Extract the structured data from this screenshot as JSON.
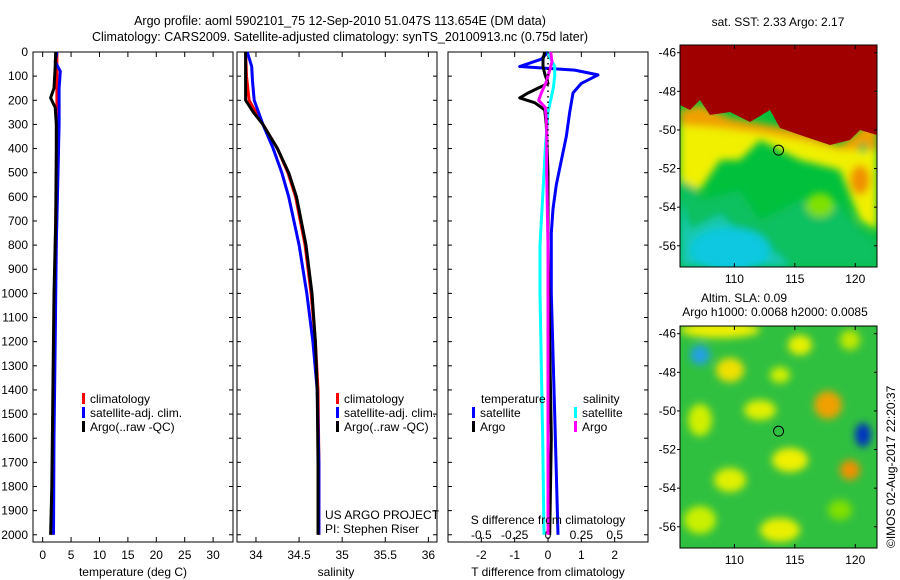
{
  "title": {
    "line1": "Argo profile: aoml 5902101_75 12-Sep-2010 51.047S 113.654E (DM data)",
    "line2": "Climatology: CARS2009. Satellite-adjusted climatology: synTS_20100913.nc (0.75d later)"
  },
  "colors": {
    "climatology": "#ff0000",
    "satellite": "#0000ff",
    "argo": "#000000",
    "sal_satellite": "#00ffff",
    "sal_argo": "#ff00ff"
  },
  "chart_data": [
    {
      "type": "line",
      "name": "temperature",
      "xlabel": "temperature (deg C)",
      "ylabel": "",
      "xlim": [
        -1.7,
        33.5
      ],
      "ylim": [
        2030,
        0
      ],
      "xticks": [
        "0",
        "5",
        "10",
        "15",
        "20",
        "25",
        "30"
      ],
      "xtick_values": [
        0,
        5,
        10,
        15,
        20,
        25,
        30
      ],
      "yticks": [
        "0",
        "100",
        "200",
        "300",
        "400",
        "500",
        "600",
        "700",
        "800",
        "900",
        "1000",
        "1100",
        "1200",
        "1300",
        "1400",
        "1500",
        "1600",
        "1700",
        "1800",
        "1900",
        "2000"
      ],
      "legend": [
        "climatology",
        "satellite-adj. clim.",
        "Argo(..raw -QC)"
      ],
      "series": [
        {
          "name": "climatology",
          "color": "#ff0000",
          "depth": [
            0,
            100,
            200,
            400,
            700,
            1000,
            1500,
            2000
          ],
          "values": [
            2.5,
            2.5,
            2.5,
            2.5,
            2.3,
            2.1,
            1.9,
            1.8
          ]
        },
        {
          "name": "satellite-adj. clim.",
          "color": "#0000ff",
          "depth": [
            0,
            40,
            80,
            150,
            300,
            500,
            800,
            1200,
            1600,
            2000
          ],
          "values": [
            2.5,
            2.2,
            3.1,
            2.9,
            2.9,
            2.7,
            2.4,
            2.2,
            2.0,
            1.9
          ]
        },
        {
          "name": "Argo",
          "color": "#000000",
          "depth": [
            0,
            60,
            150,
            190,
            230,
            300,
            400,
            700,
            1000,
            1400,
            1800,
            2000
          ],
          "values": [
            2.3,
            2.2,
            2.0,
            1.4,
            2.2,
            2.4,
            2.4,
            2.3,
            2.0,
            1.8,
            1.6,
            1.4
          ]
        }
      ]
    },
    {
      "type": "line",
      "name": "salinity",
      "xlabel": "salinity",
      "xlim": [
        33.78,
        36.1
      ],
      "ylim": [
        2030,
        0
      ],
      "xticks": [
        "34",
        "34.5",
        "35",
        "35.5",
        "36"
      ],
      "xtick_values": [
        34,
        34.5,
        35,
        35.5,
        36
      ],
      "legend": [
        "climatology",
        "satellite-adj. clim.",
        "Argo(..raw -QC)"
      ],
      "annotation": [
        "US ARGO PROJECT",
        "PI: Stephen Riser"
      ],
      "series": [
        {
          "name": "climatology",
          "color": "#ff0000",
          "depth": [
            0,
            100,
            200,
            300,
            400,
            500,
            600,
            800,
            1000,
            1200,
            1400,
            1700,
            2000
          ],
          "values": [
            33.88,
            33.89,
            33.92,
            34.08,
            34.25,
            34.37,
            34.46,
            34.57,
            34.64,
            34.69,
            34.72,
            34.73,
            34.73
          ]
        },
        {
          "name": "satellite-adj. clim.",
          "color": "#0000ff",
          "depth": [
            0,
            60,
            120,
            200,
            300,
            400,
            500,
            600,
            800,
            1000,
            1200,
            1400,
            1700,
            2000
          ],
          "values": [
            33.9,
            33.95,
            33.96,
            33.98,
            34.08,
            34.2,
            34.3,
            34.38,
            34.5,
            34.59,
            34.66,
            34.71,
            34.73,
            34.73
          ]
        },
        {
          "name": "Argo",
          "color": "#000000",
          "depth": [
            0,
            100,
            200,
            250,
            300,
            400,
            500,
            600,
            800,
            1000,
            1200,
            1400,
            1700,
            2000
          ],
          "values": [
            33.88,
            33.88,
            33.88,
            33.97,
            34.08,
            34.25,
            34.38,
            34.47,
            34.58,
            34.65,
            34.69,
            34.71,
            34.72,
            34.72
          ]
        }
      ]
    },
    {
      "type": "line",
      "name": "difference",
      "xlabel": "T difference from climatology",
      "x2label": "S difference from climatology",
      "xlim": [
        -3,
        3
      ],
      "ylim": [
        2030,
        0
      ],
      "xticks": [
        "-2",
        "-1",
        "0",
        "1",
        "2"
      ],
      "xtick_values": [
        -2,
        -1,
        0,
        1,
        2
      ],
      "x2ticks": [
        "-0.5",
        "-0.25",
        "0",
        "0.25",
        "0.5"
      ],
      "x2tick_values": [
        -0.5,
        -0.25,
        0,
        0.25,
        0.5
      ],
      "legend": {
        "temperature": "temperature",
        "salinity": "salinity",
        "satellite": "satellite",
        "argo": "Argo"
      },
      "series": [
        {
          "name": "T satellite",
          "color": "#0000ff",
          "units": "T",
          "depth": [
            0,
            30,
            60,
            75,
            95,
            130,
            170,
            250,
            350,
            450,
            550,
            650,
            750,
            1000,
            1500,
            2000
          ],
          "values": [
            0,
            -0.2,
            -0.85,
            0.8,
            1.5,
            1.0,
            0.75,
            0.65,
            0.55,
            0.4,
            0.25,
            0.15,
            0.1,
            0.1,
            0.2,
            0.3
          ]
        },
        {
          "name": "T Argo",
          "color": "#000000",
          "units": "T",
          "depth": [
            0,
            30,
            60,
            90,
            130,
            170,
            190,
            210,
            240,
            300,
            500,
            800,
            1200,
            1600,
            2000
          ],
          "values": [
            -0.1,
            -0.15,
            -0.15,
            -0.1,
            0.0,
            -0.6,
            -0.85,
            -0.4,
            -0.1,
            -0.05,
            0,
            0,
            0.05,
            0.1,
            0.05
          ]
        },
        {
          "name": "S satellite",
          "color": "#00ffff",
          "units": "S",
          "depth": [
            0,
            30,
            60,
            100,
            150,
            250,
            400,
            600,
            800,
            1000,
            1300,
            1600,
            2000
          ],
          "values": [
            0,
            0.02,
            0.05,
            0.05,
            0.04,
            0.0,
            -0.02,
            -0.04,
            -0.06,
            -0.06,
            -0.05,
            -0.04,
            -0.03
          ]
        },
        {
          "name": "S Argo",
          "color": "#ff00ff",
          "units": "S",
          "depth": [
            0,
            40,
            80,
            120,
            170,
            200,
            230,
            300,
            500,
            800,
            1200,
            1600,
            2000
          ],
          "values": [
            0.02,
            0.03,
            0.01,
            -0.01,
            -0.05,
            -0.07,
            -0.02,
            -0.01,
            -0.01,
            0.0,
            0.0,
            0.0,
            0.0
          ]
        },
        {
          "name": "zero",
          "color": "#000000",
          "units": "T",
          "style": "dotted",
          "depth": [
            0,
            400
          ],
          "values": [
            0,
            0
          ]
        }
      ]
    },
    {
      "type": "heatmap",
      "name": "sst-map",
      "title": "sat. SST: 2.33 Argo: 2.17",
      "xlim": [
        105.5,
        121.8
      ],
      "ylim": [
        -57.1,
        -45.6
      ],
      "xticks": [
        "110",
        "115",
        "120"
      ],
      "xtick_values": [
        110,
        115,
        120
      ],
      "yticks": [
        "-46",
        "-48",
        "-50",
        "-52",
        "-54",
        "-56"
      ],
      "ytick_values": [
        -46,
        -48,
        -50,
        -52,
        -54,
        -56
      ],
      "marker": {
        "lon": 113.654,
        "lat": -51.047
      }
    },
    {
      "type": "heatmap",
      "name": "sla-map",
      "title": "Altim. SLA: 0.09",
      "subtitle": "Argo h1000: 0.0068 h2000: 0.0085",
      "xlim": [
        105.5,
        121.8
      ],
      "ylim": [
        -57.1,
        -45.6
      ],
      "xticks": [
        "110",
        "115",
        "120"
      ],
      "xtick_values": [
        110,
        115,
        120
      ],
      "yticks": [
        "-46",
        "-48",
        "-50",
        "-52",
        "-54",
        "-56"
      ],
      "ytick_values": [
        -46,
        -48,
        -50,
        -52,
        -54,
        -56
      ],
      "marker": {
        "lon": 113.654,
        "lat": -51.047
      }
    }
  ],
  "credit": "©IMOS 02-Aug-2017 22:20:37"
}
